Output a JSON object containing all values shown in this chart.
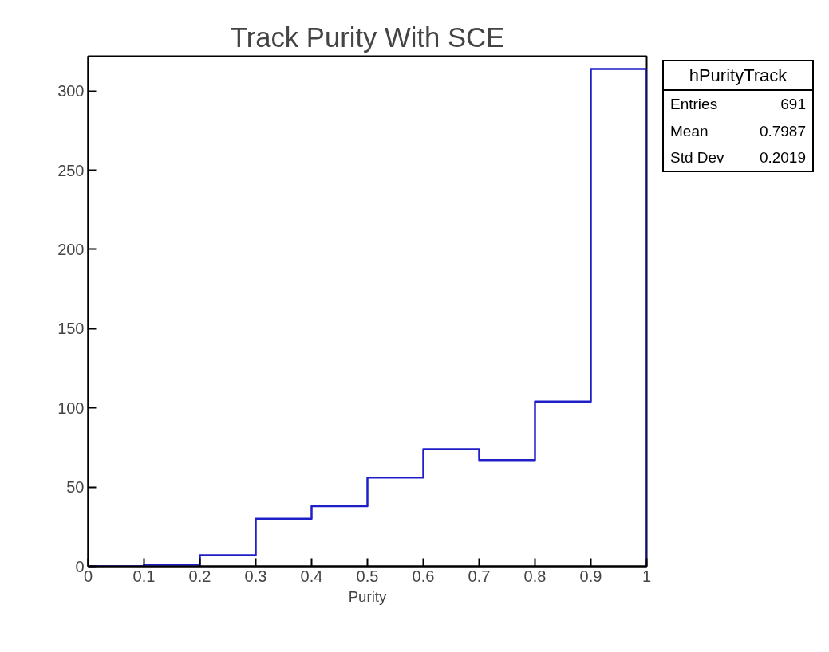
{
  "chart_data": {
    "type": "histogram",
    "title": "Track Purity With SCE",
    "xlabel": "Purity",
    "bins": [
      0,
      0.1,
      0.2,
      0.3,
      0.4,
      0.5,
      0.6,
      0.7,
      0.8,
      0.9,
      1.0
    ],
    "values": [
      0,
      1,
      7,
      30,
      38,
      56,
      74,
      67,
      104,
      314
    ],
    "color": "#1f1fc8",
    "xlim": [
      0,
      1
    ],
    "ylim": [
      0,
      322
    ],
    "xticks": [
      0,
      0.1,
      0.2,
      0.3,
      0.4,
      0.5,
      0.6,
      0.7,
      0.8,
      0.9,
      1
    ],
    "yticks": [
      0,
      50,
      100,
      150,
      200,
      250,
      300
    ],
    "grid": false,
    "annotations": [
      "hPurityTrack",
      "Entries",
      "691",
      "Mean",
      "0.7987",
      "Std Dev",
      "0.2019"
    ]
  }
}
